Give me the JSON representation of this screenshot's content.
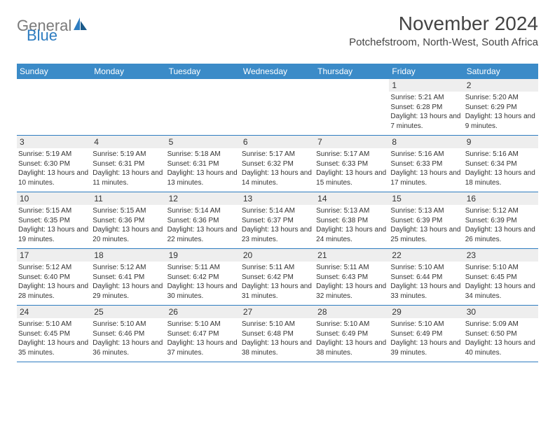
{
  "brand": {
    "general": "General",
    "blue": "Blue"
  },
  "title": "November 2024",
  "location": "Potchefstroom, North-West, South Africa",
  "weekdays": [
    "Sunday",
    "Monday",
    "Tuesday",
    "Wednesday",
    "Thursday",
    "Friday",
    "Saturday"
  ],
  "colors": {
    "header_bar": "#3b8bc8",
    "rule": "#2d7cc0",
    "shade": "#eeeeee",
    "text": "#333333",
    "logo_gray": "#7a7a7a",
    "logo_blue": "#2d7cc0"
  },
  "weeks": [
    [
      {
        "n": "",
        "sr": "",
        "ss": "",
        "dl": ""
      },
      {
        "n": "",
        "sr": "",
        "ss": "",
        "dl": ""
      },
      {
        "n": "",
        "sr": "",
        "ss": "",
        "dl": ""
      },
      {
        "n": "",
        "sr": "",
        "ss": "",
        "dl": ""
      },
      {
        "n": "",
        "sr": "",
        "ss": "",
        "dl": ""
      },
      {
        "n": "1",
        "sr": "Sunrise: 5:21 AM",
        "ss": "Sunset: 6:28 PM",
        "dl": "Daylight: 13 hours and 7 minutes."
      },
      {
        "n": "2",
        "sr": "Sunrise: 5:20 AM",
        "ss": "Sunset: 6:29 PM",
        "dl": "Daylight: 13 hours and 9 minutes."
      }
    ],
    [
      {
        "n": "3",
        "sr": "Sunrise: 5:19 AM",
        "ss": "Sunset: 6:30 PM",
        "dl": "Daylight: 13 hours and 10 minutes."
      },
      {
        "n": "4",
        "sr": "Sunrise: 5:19 AM",
        "ss": "Sunset: 6:31 PM",
        "dl": "Daylight: 13 hours and 11 minutes."
      },
      {
        "n": "5",
        "sr": "Sunrise: 5:18 AM",
        "ss": "Sunset: 6:31 PM",
        "dl": "Daylight: 13 hours and 13 minutes."
      },
      {
        "n": "6",
        "sr": "Sunrise: 5:17 AM",
        "ss": "Sunset: 6:32 PM",
        "dl": "Daylight: 13 hours and 14 minutes."
      },
      {
        "n": "7",
        "sr": "Sunrise: 5:17 AM",
        "ss": "Sunset: 6:33 PM",
        "dl": "Daylight: 13 hours and 15 minutes."
      },
      {
        "n": "8",
        "sr": "Sunrise: 5:16 AM",
        "ss": "Sunset: 6:33 PM",
        "dl": "Daylight: 13 hours and 17 minutes."
      },
      {
        "n": "9",
        "sr": "Sunrise: 5:16 AM",
        "ss": "Sunset: 6:34 PM",
        "dl": "Daylight: 13 hours and 18 minutes."
      }
    ],
    [
      {
        "n": "10",
        "sr": "Sunrise: 5:15 AM",
        "ss": "Sunset: 6:35 PM",
        "dl": "Daylight: 13 hours and 19 minutes."
      },
      {
        "n": "11",
        "sr": "Sunrise: 5:15 AM",
        "ss": "Sunset: 6:36 PM",
        "dl": "Daylight: 13 hours and 20 minutes."
      },
      {
        "n": "12",
        "sr": "Sunrise: 5:14 AM",
        "ss": "Sunset: 6:36 PM",
        "dl": "Daylight: 13 hours and 22 minutes."
      },
      {
        "n": "13",
        "sr": "Sunrise: 5:14 AM",
        "ss": "Sunset: 6:37 PM",
        "dl": "Daylight: 13 hours and 23 minutes."
      },
      {
        "n": "14",
        "sr": "Sunrise: 5:13 AM",
        "ss": "Sunset: 6:38 PM",
        "dl": "Daylight: 13 hours and 24 minutes."
      },
      {
        "n": "15",
        "sr": "Sunrise: 5:13 AM",
        "ss": "Sunset: 6:39 PM",
        "dl": "Daylight: 13 hours and 25 minutes."
      },
      {
        "n": "16",
        "sr": "Sunrise: 5:12 AM",
        "ss": "Sunset: 6:39 PM",
        "dl": "Daylight: 13 hours and 26 minutes."
      }
    ],
    [
      {
        "n": "17",
        "sr": "Sunrise: 5:12 AM",
        "ss": "Sunset: 6:40 PM",
        "dl": "Daylight: 13 hours and 28 minutes."
      },
      {
        "n": "18",
        "sr": "Sunrise: 5:12 AM",
        "ss": "Sunset: 6:41 PM",
        "dl": "Daylight: 13 hours and 29 minutes."
      },
      {
        "n": "19",
        "sr": "Sunrise: 5:11 AM",
        "ss": "Sunset: 6:42 PM",
        "dl": "Daylight: 13 hours and 30 minutes."
      },
      {
        "n": "20",
        "sr": "Sunrise: 5:11 AM",
        "ss": "Sunset: 6:42 PM",
        "dl": "Daylight: 13 hours and 31 minutes."
      },
      {
        "n": "21",
        "sr": "Sunrise: 5:11 AM",
        "ss": "Sunset: 6:43 PM",
        "dl": "Daylight: 13 hours and 32 minutes."
      },
      {
        "n": "22",
        "sr": "Sunrise: 5:10 AM",
        "ss": "Sunset: 6:44 PM",
        "dl": "Daylight: 13 hours and 33 minutes."
      },
      {
        "n": "23",
        "sr": "Sunrise: 5:10 AM",
        "ss": "Sunset: 6:45 PM",
        "dl": "Daylight: 13 hours and 34 minutes."
      }
    ],
    [
      {
        "n": "24",
        "sr": "Sunrise: 5:10 AM",
        "ss": "Sunset: 6:45 PM",
        "dl": "Daylight: 13 hours and 35 minutes."
      },
      {
        "n": "25",
        "sr": "Sunrise: 5:10 AM",
        "ss": "Sunset: 6:46 PM",
        "dl": "Daylight: 13 hours and 36 minutes."
      },
      {
        "n": "26",
        "sr": "Sunrise: 5:10 AM",
        "ss": "Sunset: 6:47 PM",
        "dl": "Daylight: 13 hours and 37 minutes."
      },
      {
        "n": "27",
        "sr": "Sunrise: 5:10 AM",
        "ss": "Sunset: 6:48 PM",
        "dl": "Daylight: 13 hours and 38 minutes."
      },
      {
        "n": "28",
        "sr": "Sunrise: 5:10 AM",
        "ss": "Sunset: 6:49 PM",
        "dl": "Daylight: 13 hours and 38 minutes."
      },
      {
        "n": "29",
        "sr": "Sunrise: 5:10 AM",
        "ss": "Sunset: 6:49 PM",
        "dl": "Daylight: 13 hours and 39 minutes."
      },
      {
        "n": "30",
        "sr": "Sunrise: 5:09 AM",
        "ss": "Sunset: 6:50 PM",
        "dl": "Daylight: 13 hours and 40 minutes."
      }
    ]
  ]
}
